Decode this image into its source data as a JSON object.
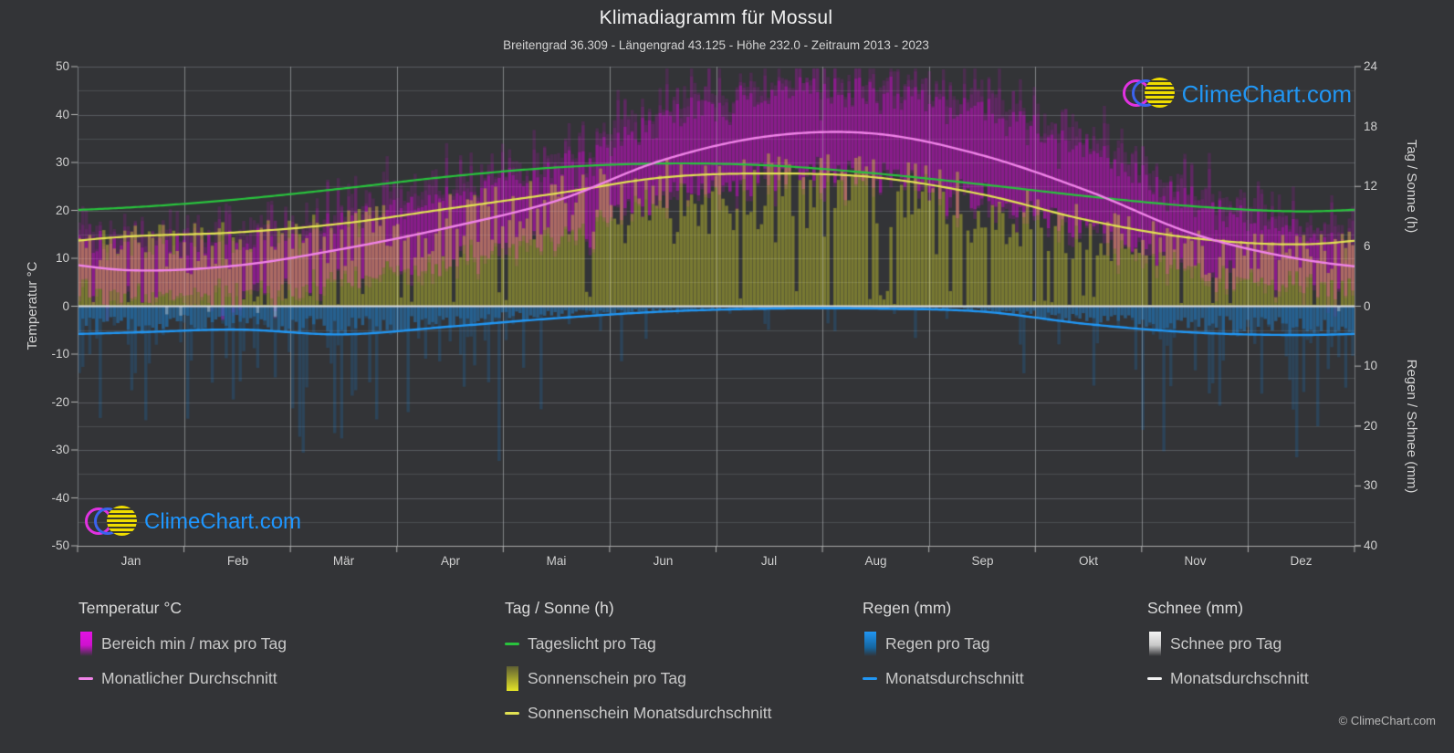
{
  "title": "Klimadiagramm für Mossul",
  "subtitle": "Breitengrad 36.309 - Längengrad 43.125 - Höhe 232.0 - Zeitraum 2013 - 2023",
  "watermark": {
    "text": "ClimeChart.com"
  },
  "copyright": "© ClimeChart.com",
  "axes": {
    "left_title": "Temperatur °C",
    "right_top_title": "Tag / Sonne (h)",
    "right_bottom_title": "Regen / Schnee (mm)",
    "temp_ticks": [
      "50",
      "40",
      "30",
      "20",
      "10",
      "0",
      "-10",
      "-20",
      "-30",
      "-40",
      "-50"
    ],
    "sun_ticks": [
      "24",
      "18",
      "12",
      "6",
      "0"
    ],
    "rain_ticks": [
      "10",
      "20",
      "30",
      "40"
    ]
  },
  "legend": {
    "groups": [
      {
        "title": "Temperatur °C",
        "items": [
          {
            "swatch": "gradient",
            "color": "#d011d0",
            "label": "Bereich min / max pro Tag"
          },
          {
            "swatch": "line",
            "color": "#f083e8",
            "label": "Monatlicher Durchschnitt"
          }
        ]
      },
      {
        "title": "Tag / Sonne (h)",
        "items": [
          {
            "swatch": "line",
            "color": "#29c33d",
            "label": "Tageslicht pro Tag"
          },
          {
            "swatch": "gradient",
            "color": "#e4e428",
            "label": "Sonnenschein pro Tag"
          },
          {
            "swatch": "line",
            "color": "#e2e253",
            "label": "Sonnenschein Monatsdurchschnitt"
          }
        ]
      },
      {
        "title": "Regen (mm)",
        "items": [
          {
            "swatch": "gradient",
            "color": "#2196f3",
            "label": "Regen pro Tag"
          },
          {
            "swatch": "line",
            "color": "#2196f3",
            "label": "Monatsdurchschnitt"
          }
        ]
      },
      {
        "title": "Schnee (mm)",
        "items": [
          {
            "swatch": "gradient",
            "color": "#e0e0e0",
            "label": "Schnee pro Tag"
          },
          {
            "swatch": "line",
            "color": "#f2f2f2",
            "label": "Monatsdurchschnitt"
          }
        ]
      }
    ]
  },
  "chart_data": {
    "type": "area",
    "title": "Klimadiagramm für Mossul",
    "months": [
      "Jan",
      "Feb",
      "Mär",
      "Apr",
      "Mai",
      "Jun",
      "Jul",
      "Aug",
      "Sep",
      "Okt",
      "Nov",
      "Dez"
    ],
    "temp_avg_c": [
      7.5,
      8.5,
      12.0,
      16.5,
      22.0,
      30.5,
      35.5,
      36.0,
      31.5,
      24.0,
      15.0,
      9.8
    ],
    "temp_min_daily_avg_c": [
      2.5,
      3.5,
      6.5,
      10.0,
      15.0,
      22.0,
      26.5,
      26.5,
      22.0,
      15.5,
      8.0,
      4.5
    ],
    "temp_max_daily_avg_c": [
      12.5,
      14.0,
      18.0,
      23.5,
      29.5,
      38.0,
      43.5,
      44.0,
      39.5,
      31.5,
      21.5,
      15.0
    ],
    "daylight_h": [
      9.9,
      10.7,
      11.8,
      13.0,
      13.9,
      14.3,
      14.1,
      13.3,
      12.2,
      11.0,
      10.0,
      9.5
    ],
    "sunshine_h": [
      7.0,
      7.4,
      8.3,
      9.8,
      11.3,
      12.9,
      13.3,
      12.9,
      11.2,
      8.6,
      6.8,
      6.2
    ],
    "rain_avg_mm_per_day": [
      4.4,
      3.9,
      4.7,
      3.4,
      2.0,
      0.9,
      0.4,
      0.4,
      0.9,
      3.0,
      4.4,
      4.8
    ],
    "snow_avg_mm_per_day": [
      0,
      0,
      0,
      0,
      0,
      0,
      0,
      0,
      0,
      0,
      0,
      0
    ],
    "temp_axis_range_c": [
      -50,
      50
    ],
    "sun_axis_range_h": [
      0,
      24
    ],
    "precip_axis_range_mm": [
      0,
      40
    ],
    "grid": "on",
    "legend_position": "bottom"
  }
}
